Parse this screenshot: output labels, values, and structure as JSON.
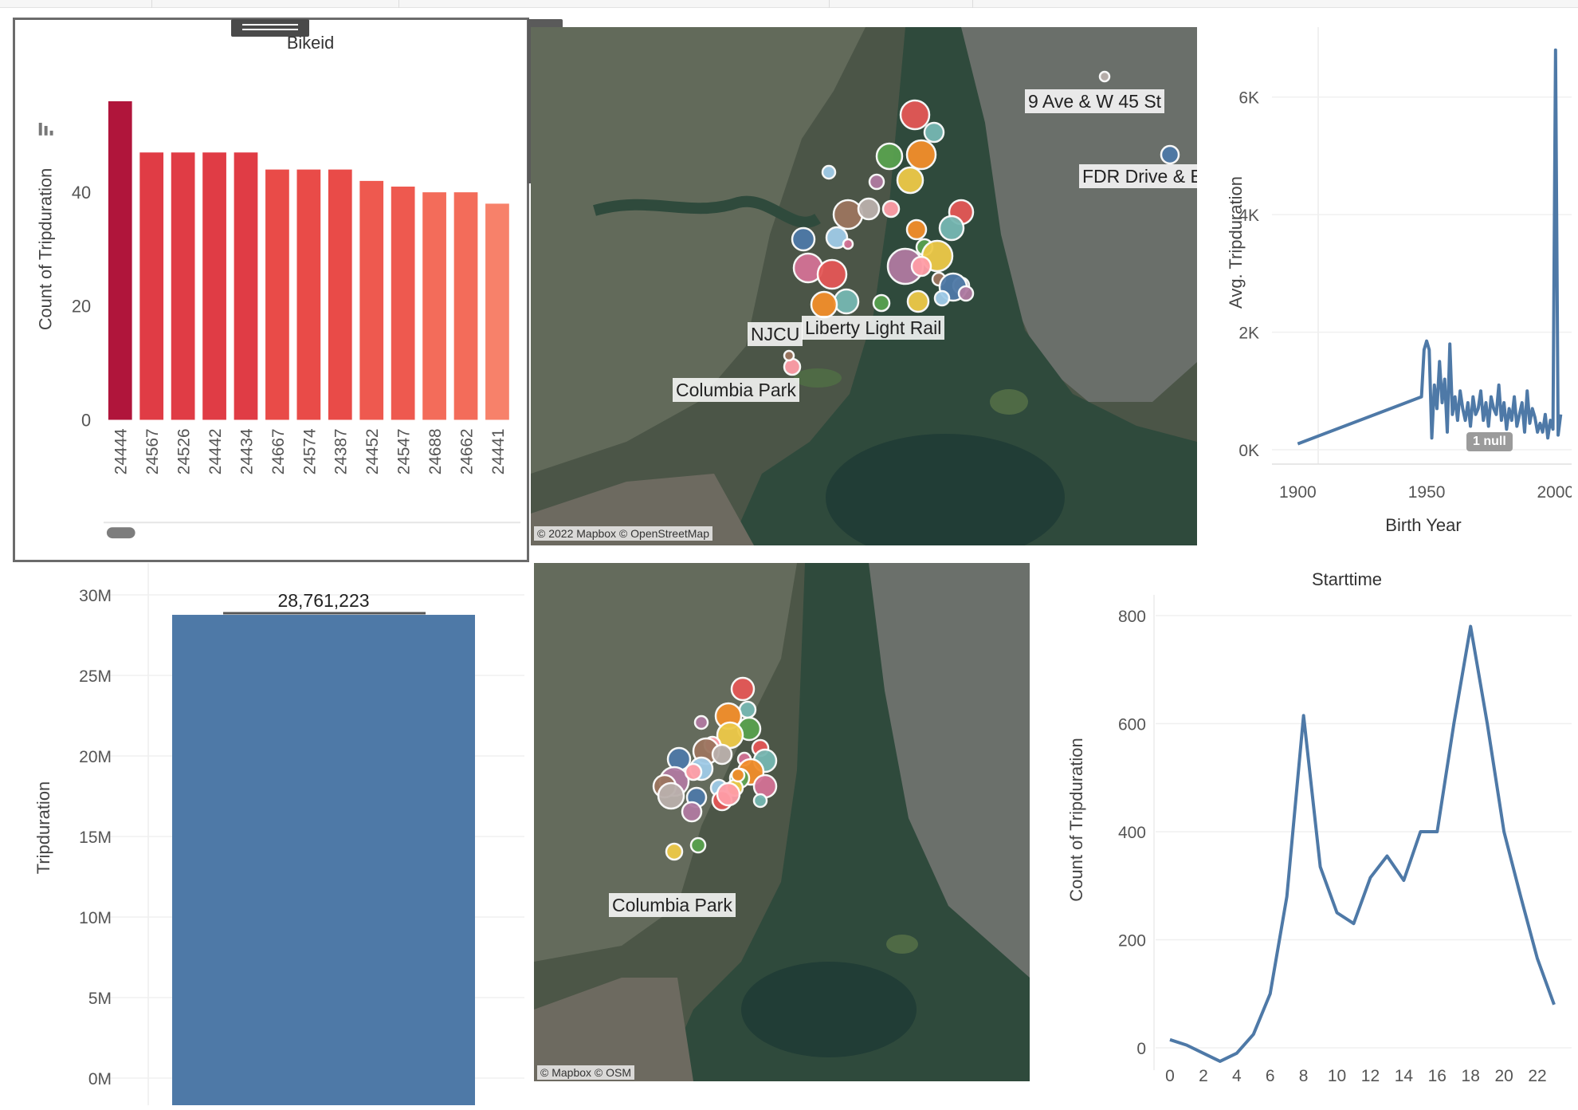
{
  "bikeid_chart": {
    "title": "Bikeid",
    "ylabel": "Count of Tripduration",
    "y_ticks": [
      "0",
      "20",
      "40"
    ],
    "categories": [
      "24444",
      "24567",
      "24526",
      "24442",
      "24434",
      "24667",
      "24574",
      "24387",
      "24452",
      "24547",
      "24688",
      "24662",
      "24441"
    ],
    "values": [
      56,
      47,
      47,
      47,
      47,
      44,
      44,
      44,
      42,
      41,
      40,
      40,
      38
    ],
    "ylim": [
      0,
      60
    ],
    "colors": [
      "#b0153b",
      "#e03c45",
      "#e03c45",
      "#e03c45",
      "#e03c45",
      "#e94b48",
      "#e94b48",
      "#e94b48",
      "#ee594f",
      "#ee594f",
      "#f36c5a",
      "#f36c5a",
      "#f7816a"
    ]
  },
  "toolbar": {
    "close_icon": "×",
    "open_icon": "⇱",
    "filter_icon": "⊽",
    "pin_icon": "⊥",
    "more_icon": "▾"
  },
  "map_top": {
    "credit": "© 2022 Mapbox © OpenStreetMap",
    "labels": [
      "9 Ave & W 45 St",
      "FDR Drive & E",
      "NJCU",
      "Liberty Light Rail",
      "Columbia Park"
    ]
  },
  "map_bottom": {
    "credit": "© Mapbox © OSM",
    "labels": [
      "Columbia Park"
    ]
  },
  "birthyear_chart": {
    "type": "line",
    "xlabel": "Birth Year",
    "ylabel": "Avg. Tripduration",
    "x_ticks": [
      "1900",
      "1950",
      "2000"
    ],
    "y_ticks": [
      "0K",
      "2K",
      "4K",
      "6K"
    ],
    "xlim": [
      1890,
      2005
    ],
    "ylim": [
      0,
      7000
    ],
    "null_badge": "1 null",
    "x": [
      1900,
      1948,
      1949,
      1950,
      1951,
      1952,
      1953,
      1954,
      1955,
      1956,
      1957,
      1958,
      1959,
      1960,
      1961,
      1962,
      1963,
      1964,
      1965,
      1966,
      1967,
      1968,
      1969,
      1970,
      1971,
      1972,
      1973,
      1974,
      1975,
      1976,
      1977,
      1978,
      1979,
      1980,
      1981,
      1982,
      1983,
      1984,
      1985,
      1986,
      1987,
      1988,
      1989,
      1990,
      1991,
      1992,
      1993,
      1994,
      1995,
      1996,
      1997,
      1998,
      1999,
      2000,
      2001,
      2002
    ],
    "y": [
      100,
      900,
      1700,
      1850,
      1700,
      200,
      1100,
      700,
      1500,
      800,
      1200,
      300,
      1800,
      600,
      900,
      500,
      1000,
      700,
      500,
      800,
      400,
      900,
      600,
      700,
      1000,
      500,
      800,
      400,
      900,
      700,
      600,
      1100,
      500,
      800,
      350,
      700,
      500,
      900,
      400,
      600,
      800,
      300,
      1000,
      450,
      700,
      550,
      300,
      450,
      300,
      600,
      200,
      500,
      350,
      6800,
      250,
      600
    ]
  },
  "tripduration_chart": {
    "type": "bar",
    "ylabel": "Tripduration",
    "y_ticks": [
      "0M",
      "5M",
      "10M",
      "15M",
      "20M",
      "25M",
      "30M"
    ],
    "ylim": [
      0,
      30000000
    ],
    "value": 28761223,
    "value_label": "28,761,223",
    "color": "#4e79a7"
  },
  "starttime_chart": {
    "type": "line",
    "title": "Starttime",
    "ylabel": "Count of Tripduration",
    "x_ticks": [
      "0",
      "2",
      "4",
      "6",
      "8",
      "10",
      "12",
      "14",
      "16",
      "18",
      "20",
      "22"
    ],
    "y_ticks": [
      "0",
      "200",
      "400",
      "600",
      "800"
    ],
    "xlim": [
      0,
      23
    ],
    "ylim": [
      0,
      800
    ],
    "x": [
      0,
      1,
      2,
      3,
      4,
      5,
      6,
      7,
      8,
      9,
      10,
      11,
      12,
      13,
      14,
      15,
      16,
      17,
      18,
      19,
      20,
      21,
      22,
      23
    ],
    "y": [
      15,
      5,
      -10,
      -25,
      -10,
      25,
      100,
      280,
      615,
      335,
      250,
      230,
      315,
      355,
      310,
      400,
      400,
      600,
      780,
      600,
      400,
      280,
      165,
      80
    ]
  }
}
